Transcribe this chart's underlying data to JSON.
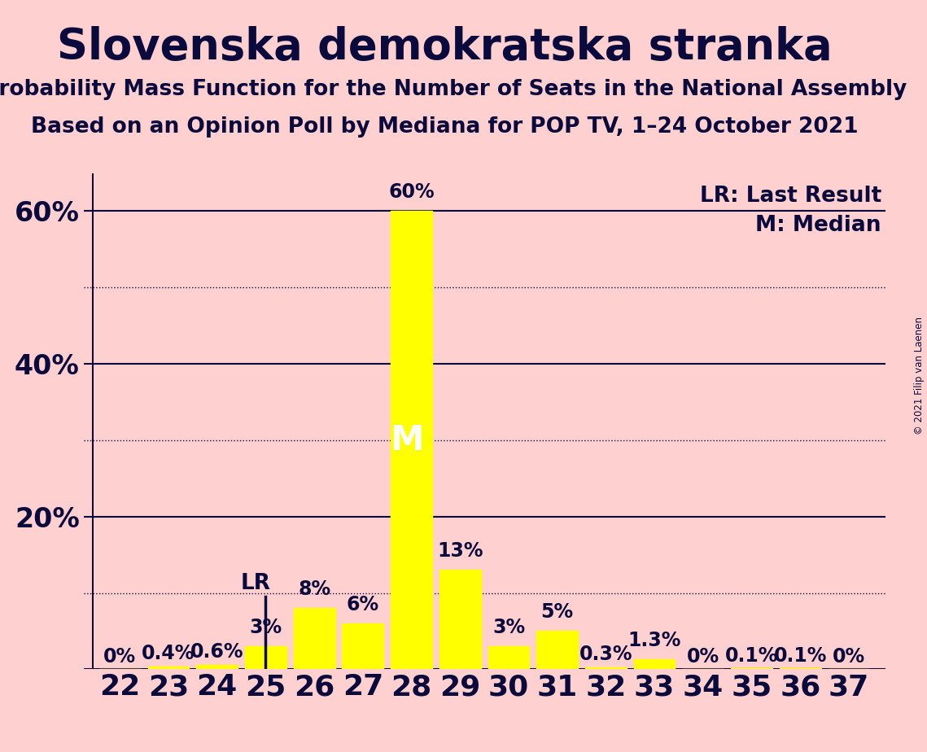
{
  "title": "Slovenska demokratska stranka",
  "subtitle1": "Probability Mass Function for the Number of Seats in the National Assembly",
  "subtitle2": "Based on an Opinion Poll by Mediana for POP TV, 1–24 October 2021",
  "copyright": "© 2021 Filip van Laenen",
  "seats": [
    22,
    23,
    24,
    25,
    26,
    27,
    28,
    29,
    30,
    31,
    32,
    33,
    34,
    35,
    36,
    37
  ],
  "probabilities": [
    0.0,
    0.4,
    0.6,
    3.0,
    8.0,
    6.0,
    60.0,
    13.0,
    3.0,
    5.0,
    0.3,
    1.3,
    0.0,
    0.1,
    0.1,
    0.0
  ],
  "bar_color": "#FFFF00",
  "background_color": "#FFD0D0",
  "text_color": "#0A0A3C",
  "lr_seat": 25,
  "median_seat": 28,
  "ylim": [
    0,
    65
  ],
  "yticks": [
    0,
    10,
    20,
    30,
    40,
    50,
    60
  ],
  "solid_yticks": [
    0,
    20,
    40,
    60
  ],
  "dotted_yticks": [
    10,
    30,
    50
  ],
  "legend_lr": "LR: Last Result",
  "legend_m": "M: Median",
  "title_fontsize": 38,
  "subtitle_fontsize": 19,
  "bar_label_fontsize": 17,
  "ytick_fontsize": 24,
  "xtick_fontsize": 26,
  "lr_label_fontsize": 19,
  "m_label_fontsize": 30
}
